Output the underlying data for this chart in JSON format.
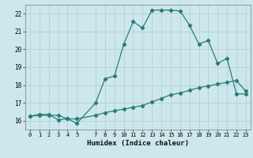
{
  "xlabel": "Humidex (Indice chaleur)",
  "bg_color": "#cce8ec",
  "grid_color": "#b8d4d8",
  "line_color": "#2d7a7a",
  "xlim": [
    -0.5,
    23.5
  ],
  "ylim": [
    15.5,
    22.5
  ],
  "yticks": [
    16,
    17,
    18,
    19,
    20,
    21,
    22
  ],
  "xticks": [
    0,
    1,
    2,
    3,
    4,
    5,
    7,
    8,
    9,
    10,
    11,
    12,
    13,
    14,
    15,
    16,
    17,
    18,
    19,
    20,
    21,
    22,
    23
  ],
  "xtick_labels": [
    "0",
    "1",
    "2",
    "3",
    "4",
    "5",
    "7",
    "8",
    "9",
    "10",
    "11",
    "12",
    "13",
    "14",
    "15",
    "16",
    "17",
    "18",
    "19",
    "20",
    "21",
    "22",
    "23"
  ],
  "curve1_x": [
    0,
    1,
    2,
    3,
    4,
    5,
    7,
    8,
    9,
    10,
    11,
    12,
    13,
    14,
    15,
    16,
    17,
    18,
    19,
    20,
    21,
    22,
    23
  ],
  "curve1_y": [
    16.25,
    16.35,
    16.35,
    16.05,
    16.1,
    15.85,
    17.0,
    18.35,
    18.5,
    20.3,
    21.55,
    21.2,
    22.2,
    22.2,
    22.2,
    22.15,
    21.35,
    20.3,
    20.5,
    19.2,
    19.5,
    17.5,
    17.5
  ],
  "curve2_x": [
    0,
    1,
    2,
    3,
    4,
    5,
    7,
    8,
    9,
    10,
    11,
    12,
    13,
    14,
    15,
    16,
    17,
    18,
    19,
    20,
    21,
    22,
    23
  ],
  "curve2_y": [
    16.25,
    16.3,
    16.3,
    16.3,
    16.1,
    16.1,
    16.3,
    16.45,
    16.55,
    16.65,
    16.75,
    16.85,
    17.05,
    17.25,
    17.45,
    17.55,
    17.7,
    17.85,
    17.95,
    18.05,
    18.15,
    18.25,
    17.65
  ]
}
